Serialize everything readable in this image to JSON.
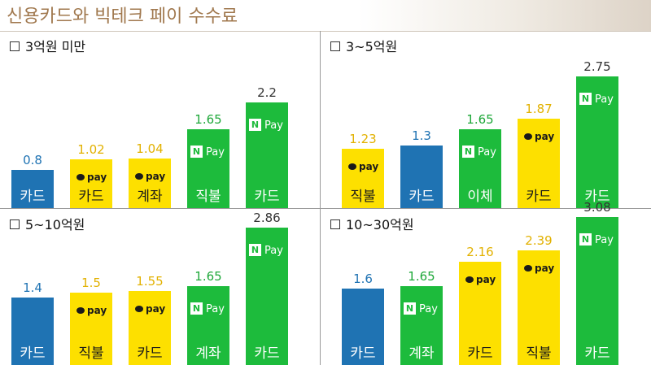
{
  "page": {
    "title": "신용카드와 빅테크 페이 수수료"
  },
  "colors": {
    "card_blue": "#1f73b3",
    "kakao_yellow": "#fde000",
    "naver_green": "#1dbb3c",
    "value_blue": "#1f73b3",
    "value_yellow": "#e2b100",
    "value_green": "#1fa83a",
    "value_dark": "#333333"
  },
  "icons": {
    "kakao": "kakaopay-logo",
    "naver": "naverpay-logo"
  },
  "badges": {
    "kakao_text": "pay",
    "naver_n": "N",
    "naver_text": "Pay"
  },
  "chart_data": [
    {
      "type": "bar",
      "title": "3억원 미만",
      "categories": [
        "카드",
        "카드",
        "계좌",
        "직불",
        "카드"
      ],
      "providers": [
        "card",
        "kakao",
        "kakao",
        "naver",
        "naver"
      ],
      "values": [
        0.8,
        1.02,
        1.04,
        1.65,
        2.2
      ],
      "value_labels": [
        "0.8",
        "1.02",
        "1.04",
        "1.65",
        "2.2"
      ]
    },
    {
      "type": "bar",
      "title": "3~5억원",
      "categories": [
        "직불",
        "카드",
        "이체",
        "카드",
        "카드"
      ],
      "providers": [
        "kakao",
        "card",
        "naver",
        "kakao",
        "naver"
      ],
      "values": [
        1.23,
        1.3,
        1.65,
        1.87,
        2.75
      ],
      "value_labels": [
        "1.23",
        "1.3",
        "1.65",
        "1.87",
        "2.75"
      ]
    },
    {
      "type": "bar",
      "title": "5~10억원",
      "categories": [
        "카드",
        "직불",
        "카드",
        "계좌",
        "카드"
      ],
      "providers": [
        "card",
        "kakao",
        "kakao",
        "naver",
        "naver"
      ],
      "values": [
        1.4,
        1.5,
        1.55,
        1.65,
        2.86
      ],
      "value_labels": [
        "1.4",
        "1.5",
        "1.55",
        "1.65",
        "2.86"
      ]
    },
    {
      "type": "bar",
      "title": "10~30억원",
      "categories": [
        "카드",
        "계좌",
        "카드",
        "직불",
        "카드"
      ],
      "providers": [
        "card",
        "naver",
        "kakao",
        "kakao",
        "naver"
      ],
      "values": [
        1.6,
        1.65,
        2.16,
        2.39,
        3.08
      ],
      "value_labels": [
        "1.6",
        "1.65",
        "2.16",
        "2.39",
        "3.08"
      ]
    }
  ]
}
